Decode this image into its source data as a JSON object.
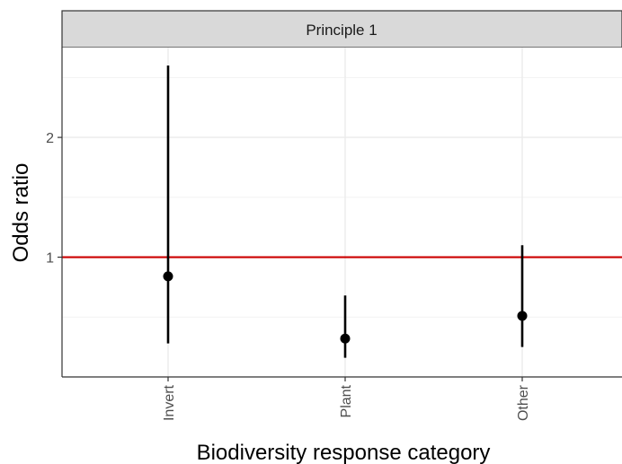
{
  "chart_data": {
    "type": "scatter",
    "facet_label": "Principle 1",
    "xlabel": "Biodiversity response category",
    "ylabel": "Odds ratio",
    "categories": [
      "Invert",
      "Plant",
      "Other"
    ],
    "estimates": [
      0.84,
      0.32,
      0.51
    ],
    "lower": [
      0.28,
      0.16,
      0.25
    ],
    "upper": [
      2.6,
      0.68,
      1.1
    ],
    "ylim": [
      0.0,
      2.75
    ],
    "yticks": [
      1,
      2
    ],
    "reference_line": {
      "y": 1,
      "color": "#cc0000"
    },
    "grid": true,
    "point_color": "#000000"
  }
}
